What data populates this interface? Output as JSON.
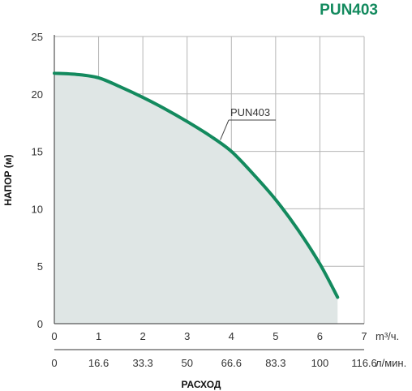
{
  "chart_data": {
    "type": "line",
    "title": "PUN403",
    "ylabel": "НАПОР (м)",
    "xlabel": "РАСХОД",
    "x_unit_primary": "m³/ч.",
    "x_unit_secondary": "л/мин.",
    "x_ticks_primary": [
      "0",
      "1",
      "2",
      "3",
      "4",
      "5",
      "6",
      "7"
    ],
    "x_ticks_secondary": [
      "0",
      "16.6",
      "33.3",
      "50",
      "66.6",
      "83.3",
      "100",
      "116.6"
    ],
    "y_ticks": [
      "0",
      "5",
      "10",
      "15",
      "20",
      "25"
    ],
    "xlim": [
      0,
      7
    ],
    "ylim": [
      0,
      25
    ],
    "grid": true,
    "series": [
      {
        "name": "PUN403",
        "x": [
          0,
          0.5,
          1,
          1.5,
          2,
          2.5,
          3,
          3.5,
          4,
          4.5,
          5,
          5.5,
          6,
          6.4
        ],
        "y": [
          21.8,
          21.7,
          21.4,
          20.6,
          19.7,
          18.7,
          17.6,
          16.4,
          15.0,
          13.0,
          10.8,
          8.2,
          5.2,
          2.3
        ]
      }
    ],
    "colors": {
      "line": "#138a5e",
      "fill": "#dfe6e5",
      "title": "#138a5e",
      "grid": "#b5b5b5"
    }
  }
}
